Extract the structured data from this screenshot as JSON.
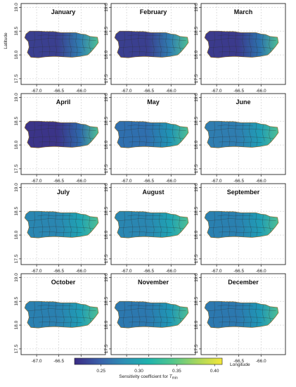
{
  "figure": {
    "panels": [
      {
        "month": "January",
        "base_color": "#2f7db0",
        "dark_color": "#3a3f8f"
      },
      {
        "month": "February",
        "base_color": "#2f7db0",
        "dark_color": "#3a3f8f"
      },
      {
        "month": "March",
        "base_color": "#2c72ad",
        "dark_color": "#3b3a8c"
      },
      {
        "month": "April",
        "base_color": "#2e68aa",
        "dark_color": "#3b3488"
      },
      {
        "month": "May",
        "base_color": "#1f94b4",
        "dark_color": "#2f6fae"
      },
      {
        "month": "June",
        "base_color": "#1f9db5",
        "dark_color": "#2f7db0"
      },
      {
        "month": "July",
        "base_color": "#1fa3b3",
        "dark_color": "#2a86b1"
      },
      {
        "month": "August",
        "base_color": "#1fa3b3",
        "dark_color": "#2a86b1"
      },
      {
        "month": "September",
        "base_color": "#1f9db5",
        "dark_color": "#2a80b0"
      },
      {
        "month": "October",
        "base_color": "#1f9db5",
        "dark_color": "#2a80b0"
      },
      {
        "month": "November",
        "base_color": "#1f97b5",
        "dark_color": "#2c78af"
      },
      {
        "month": "December",
        "base_color": "#1f97b5",
        "dark_color": "#2c78af"
      }
    ],
    "x_ticks": [
      "-67.0",
      "-66.5",
      "-66.0"
    ],
    "x_tick_values": [
      -67.0,
      -66.5,
      -66.0
    ],
    "y_ticks": [
      "17.5",
      "18.0",
      "18.5",
      "19.0"
    ],
    "y_tick_values": [
      17.5,
      18.0,
      18.5,
      19.0
    ],
    "x_range": [
      -67.35,
      -65.45
    ],
    "y_range": [
      17.38,
      19.08
    ],
    "ylabel": "Latitude",
    "xlabel": "Longitude",
    "colorbar": {
      "ticks": [
        "0.25",
        "0.30",
        "0.35",
        "0.40"
      ],
      "tick_values": [
        0.25,
        0.3,
        0.35,
        0.4
      ],
      "range": [
        0.215,
        0.41
      ],
      "label_prefix": "Sensitivity coefficient for ",
      "label_symbol": "T",
      "label_subscript": "min",
      "colors": [
        "#3b2c84",
        "#3b5fa9",
        "#2e8fb5",
        "#1fb3ad",
        "#53c68c",
        "#a8d65c",
        "#f3e73a"
      ]
    },
    "coast_color": "#c98a1a"
  }
}
